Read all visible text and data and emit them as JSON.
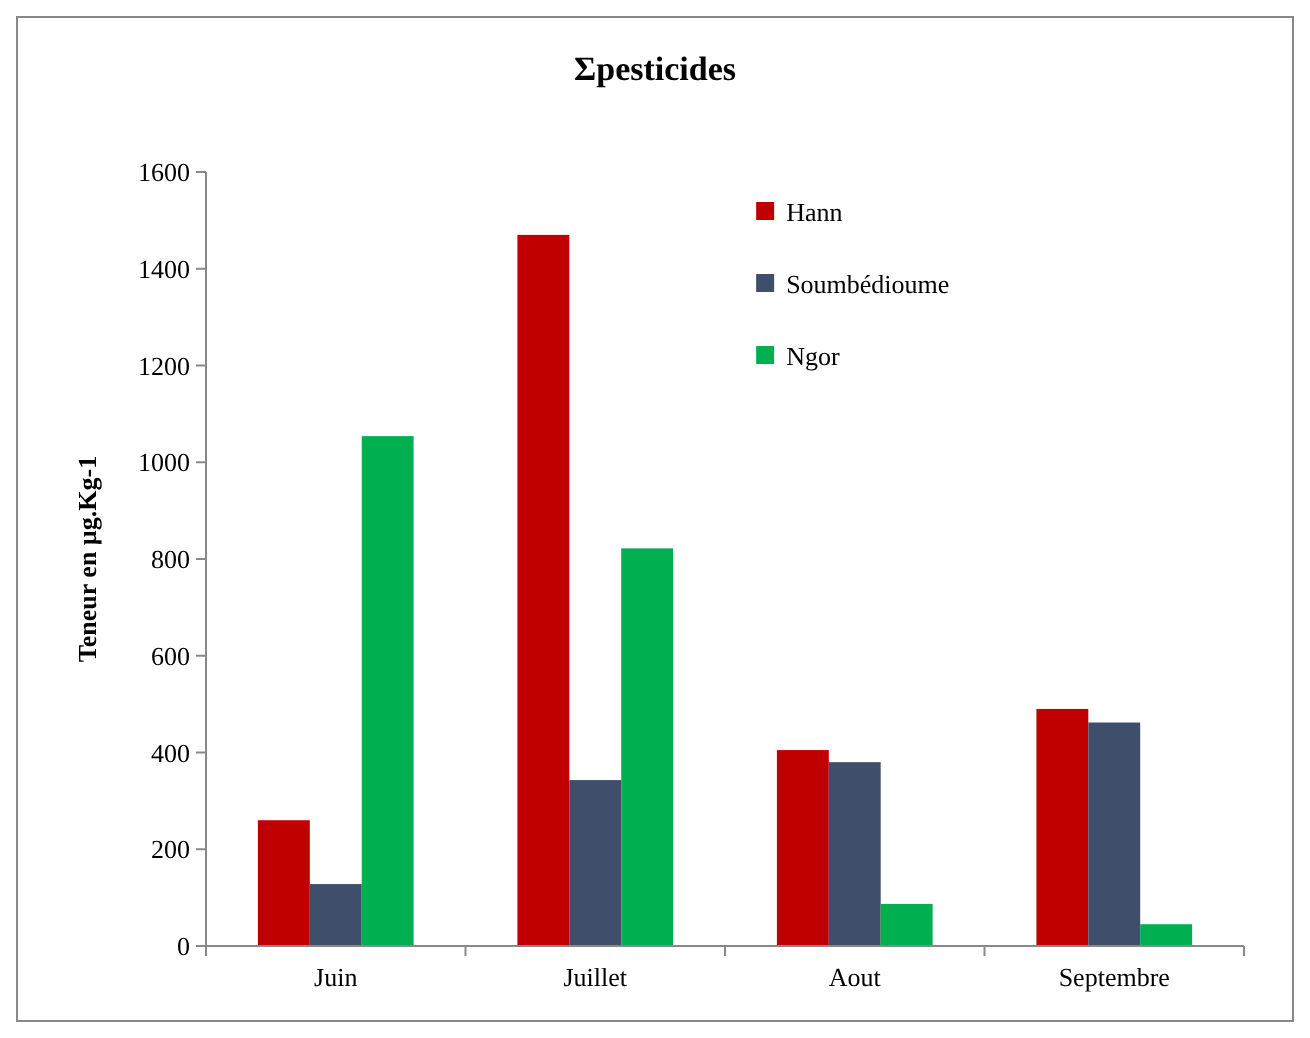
{
  "chart_data": {
    "type": "bar",
    "title": "Σpesticides",
    "ylabel": "Teneur en µg.Kg-1",
    "categories": [
      "Juin",
      "Juillet",
      "Aout",
      "Septembre"
    ],
    "series": [
      {
        "name": "Hann",
        "color": "#c00000",
        "values": [
          260,
          1470,
          405,
          490
        ]
      },
      {
        "name": "Soumbédioume",
        "color": "#3f4f6b",
        "values": [
          128,
          343,
          380,
          462
        ]
      },
      {
        "name": "Ngor",
        "color": "#00b050",
        "values": [
          1054,
          822,
          87,
          45
        ]
      }
    ],
    "ylim": [
      0,
      1600
    ],
    "yticks": [
      0,
      200,
      400,
      600,
      800,
      1000,
      1200,
      1400,
      1600
    ],
    "grid": false,
    "legend": "top"
  }
}
